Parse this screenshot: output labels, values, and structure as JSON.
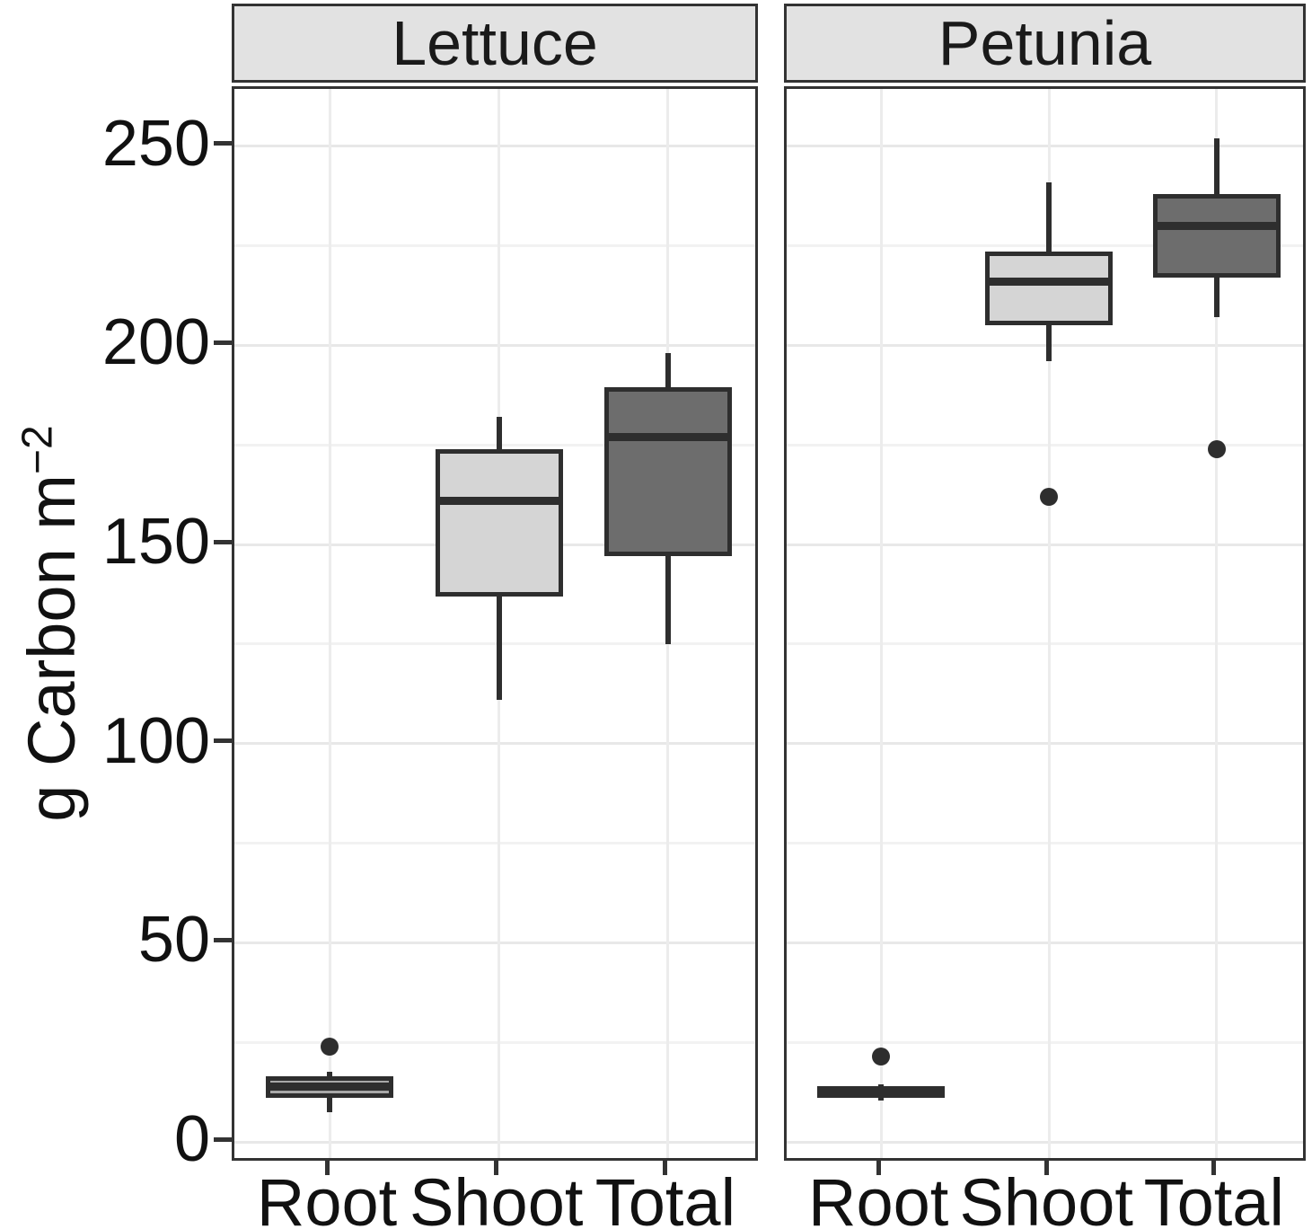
{
  "chart_data": {
    "type": "boxplot",
    "title": "",
    "ylabel_main": "g Carbon m",
    "ylabel_sup": "−2",
    "yticks": [
      0,
      50,
      100,
      150,
      200,
      250
    ],
    "minor_gridlines": [
      25,
      75,
      125,
      175,
      225
    ],
    "ylim": [
      -5.4,
      264.4
    ],
    "grid": true,
    "categories": [
      "Root",
      "Shoot",
      "Total"
    ],
    "fill_colors": {
      "Root": "#a8a8a8",
      "Shoot": "#d5d5d5",
      "Total": "#6d6d6d"
    },
    "stroke_color": "#2e2e2e",
    "facets": [
      {
        "label": "Lettuce",
        "boxes": [
          {
            "category": "Root",
            "min": 7.5,
            "q1": 11,
            "median": 14,
            "q3": 16.5,
            "max": 17.5,
            "outliers": [
              24
            ]
          },
          {
            "category": "Shoot",
            "min": 111,
            "q1": 137,
            "median": 161,
            "q3": 174,
            "max": 182,
            "outliers": []
          },
          {
            "category": "Total",
            "min": 125,
            "q1": 147,
            "median": 177,
            "q3": 189.5,
            "max": 198,
            "outliers": []
          }
        ]
      },
      {
        "label": "Petunia",
        "boxes": [
          {
            "category": "Root",
            "min": 10.5,
            "q1": 11,
            "median": 13,
            "q3": 14,
            "max": 14.5,
            "outliers": [
              21.5
            ]
          },
          {
            "category": "Shoot",
            "min": 196,
            "q1": 205,
            "median": 216,
            "q3": 223.5,
            "max": 241,
            "outliers": [
              162
            ]
          },
          {
            "category": "Total",
            "min": 207,
            "q1": 217,
            "median": 230,
            "q3": 238,
            "max": 252,
            "outliers": [
              174
            ]
          }
        ]
      }
    ]
  }
}
